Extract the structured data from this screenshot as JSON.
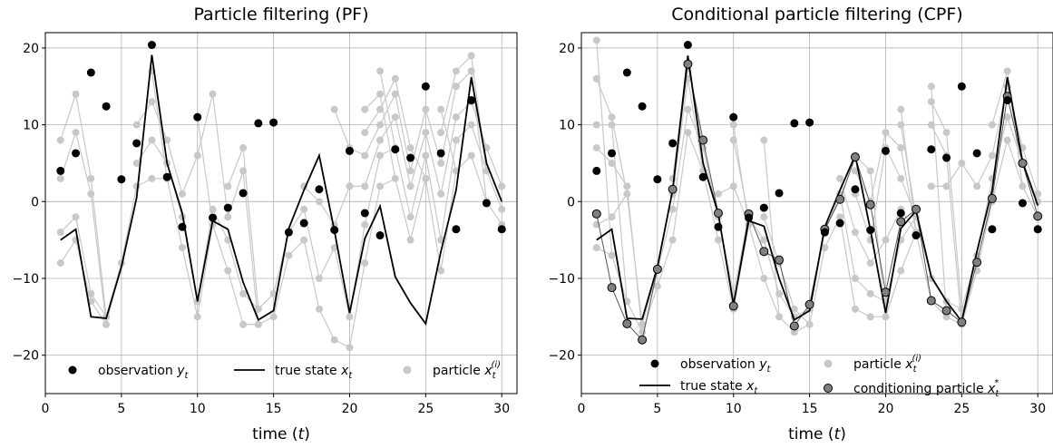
{
  "chart_data": [
    {
      "type": "line",
      "title": "Particle filtering (PF)",
      "xlabel": "time (t)",
      "xlim": [
        0,
        31
      ],
      "ylim": [
        -25,
        22
      ],
      "xticks": [
        0,
        5,
        10,
        15,
        20,
        25,
        30
      ],
      "yticks": [
        -20,
        -10,
        0,
        10,
        20
      ],
      "grid": true,
      "legend_position": "bottom",
      "colors": {
        "observation": "#000000",
        "true_state": "#000000",
        "particle": "#c8c8c8"
      },
      "legend": [
        {
          "kind": "observation",
          "text": "observation y",
          "sub": "t"
        },
        {
          "kind": "true_state",
          "text": "true state x",
          "sub": "t"
        },
        {
          "kind": "particle",
          "text": "particle x",
          "sub": "t",
          "sup": "(i)"
        }
      ],
      "true_state": {
        "x": [
          1,
          2,
          3,
          4,
          5,
          6,
          7,
          8,
          9,
          10,
          11,
          12,
          13,
          14,
          15,
          16,
          17,
          18,
          19,
          20,
          21,
          22,
          23,
          24,
          25,
          26,
          27,
          28,
          29,
          30
        ],
        "y": [
          -5,
          -3.6,
          -15,
          -15.2,
          -8.5,
          0.5,
          19.1,
          5,
          -1.5,
          -13,
          -2.5,
          -3.6,
          -10.5,
          -15.4,
          -14.2,
          -3.5,
          1.5,
          6,
          -3.8,
          -14.5,
          -4.8,
          -0.6,
          -9.8,
          -13.2,
          -15.9,
          -6.5,
          1.5,
          16.2,
          5,
          0
        ]
      },
      "observations": {
        "x": [
          1,
          2,
          3,
          4,
          5,
          6,
          7,
          8,
          9,
          10,
          11,
          12,
          13,
          14,
          15,
          16,
          17,
          18,
          19,
          20,
          21,
          22,
          23,
          24,
          25,
          26,
          27,
          28,
          29,
          30
        ],
        "y": [
          4,
          6.3,
          16.8,
          12.4,
          2.9,
          7.6,
          20.4,
          3.2,
          -3.3,
          11,
          -2.1,
          -0.8,
          1.1,
          10.2,
          10.3,
          -4,
          -2.8,
          1.6,
          -3.7,
          6.6,
          -1.5,
          -4.4,
          6.8,
          5.7,
          15,
          6.3,
          -3.6,
          13.2,
          -0.2,
          -3.6
        ]
      },
      "particles": {
        "x": [
          1,
          2,
          3,
          4,
          5,
          6,
          7,
          8,
          9,
          10,
          11,
          12,
          13,
          14,
          15,
          16,
          17,
          18,
          19,
          20,
          21,
          22,
          23,
          24,
          25,
          26,
          27,
          28,
          29,
          30
        ],
        "clusters": [
          [
            [
              -8,
              -4,
              3,
              8
            ],
            [
              -5,
              -2,
              9,
              14
            ],
            [
              -13,
              -12,
              1,
              3
            ],
            [
              -16,
              -15
            ],
            [
              -8
            ],
            [
              2,
              5,
              10
            ],
            [
              3,
              8,
              13,
              17
            ],
            [
              3,
              5,
              8
            ],
            [
              -6,
              -2,
              1
            ],
            [
              -15,
              -13,
              6,
              11
            ],
            [
              -3,
              -1,
              14
            ],
            [
              -9,
              -5,
              -2,
              2
            ],
            [
              -16,
              -12,
              4,
              7
            ],
            [
              -16,
              -14
            ],
            [
              -15,
              -12
            ],
            [
              -7,
              -4
            ],
            [
              -5,
              -1,
              2
            ],
            [
              -14,
              -10,
              0
            ],
            [
              -18,
              -6,
              -3,
              12
            ],
            [
              -19,
              -15,
              2,
              7
            ],
            [
              -8,
              -3,
              2,
              6,
              9,
              12
            ],
            [
              2,
              6,
              8,
              10,
              12,
              14,
              17
            ],
            [
              3,
              7,
              11,
              14,
              16
            ],
            [
              -5,
              -2,
              2,
              4,
              7
            ],
            [
              3,
              6,
              9,
              12
            ],
            [
              -9,
              -5,
              1,
              5,
              9,
              12
            ],
            [
              4,
              8,
              11,
              15,
              17
            ],
            [
              6,
              10,
              13,
              17,
              19
            ],
            [
              0,
              4,
              7
            ],
            [
              -3,
              -1,
              2
            ]
          ]
        ]
      }
    },
    {
      "type": "line",
      "title": "Conditional particle filtering (CPF)",
      "xlabel": "time (t)",
      "xlim": [
        0,
        31
      ],
      "ylim": [
        -25,
        22
      ],
      "xticks": [
        0,
        5,
        10,
        15,
        20,
        25,
        30
      ],
      "yticks": [
        -20,
        -10,
        0,
        10,
        20
      ],
      "grid": true,
      "legend_position": "bottom",
      "colors": {
        "observation": "#000000",
        "true_state": "#000000",
        "particle": "#c8c8c8",
        "conditioning": "#808080"
      },
      "legend": [
        {
          "kind": "observation",
          "text": "observation y",
          "sub": "t"
        },
        {
          "kind": "particle",
          "text": "particle x",
          "sub": "t",
          "sup": "(i)"
        },
        {
          "kind": "true_state",
          "text": "true state x",
          "sub": "t"
        },
        {
          "kind": "conditioning",
          "text": "conditioning particle x",
          "sub": "t",
          "sup": "*"
        }
      ],
      "true_state": {
        "x": [
          1,
          2,
          3,
          4,
          5,
          6,
          7,
          8,
          9,
          10,
          11,
          12,
          13,
          14,
          15,
          16,
          17,
          18,
          19,
          20,
          21,
          22,
          23,
          24,
          25,
          26,
          27,
          28,
          29,
          30
        ],
        "y": [
          -5,
          -3.6,
          -15.2,
          -15.3,
          -8.5,
          1.5,
          19,
          5,
          -1.6,
          -13.4,
          -2.5,
          -3.2,
          -10,
          -15.4,
          -14.2,
          -3.3,
          1.5,
          6,
          -3.7,
          -14.5,
          -3.5,
          -1.2,
          -9.8,
          -13,
          -15.6,
          -6.5,
          1.5,
          16.2,
          5.2,
          -0.5
        ]
      },
      "observations": {
        "x": [
          1,
          2,
          3,
          4,
          5,
          6,
          7,
          8,
          9,
          10,
          11,
          12,
          13,
          14,
          15,
          16,
          17,
          18,
          19,
          20,
          21,
          22,
          23,
          24,
          25,
          26,
          27,
          28,
          29,
          30
        ],
        "y": [
          4,
          6.3,
          16.8,
          12.4,
          2.9,
          7.6,
          20.4,
          3.2,
          -3.3,
          11,
          -2.1,
          -0.8,
          1.1,
          10.2,
          10.3,
          -4,
          -2.8,
          1.6,
          -3.7,
          6.6,
          -1.5,
          -4.4,
          6.8,
          5.7,
          15,
          6.3,
          -3.6,
          13.2,
          -0.2,
          -3.6
        ]
      },
      "conditioning": {
        "x": [
          1,
          2,
          3,
          4,
          5,
          6,
          7,
          8,
          9,
          10,
          11,
          12,
          13,
          14,
          15,
          16,
          17,
          18,
          19,
          20,
          21,
          22,
          23,
          24,
          25,
          26,
          27,
          28,
          29,
          30
        ],
        "y": [
          -1.6,
          -11.2,
          -15.9,
          -18,
          -8.8,
          1.6,
          17.9,
          8,
          -1.5,
          -13.6,
          -1.6,
          -6.5,
          -7.6,
          -16.2,
          -13.4,
          -3.6,
          0.3,
          5.8,
          -0.4,
          -11.8,
          -2.6,
          -1,
          -12.9,
          -14.2,
          -15.7,
          -7.9,
          0.4,
          13.7,
          5,
          -1.9
        ]
      },
      "particles": {
        "x": [
          1,
          2,
          3,
          4,
          5,
          6,
          7,
          8,
          9,
          10,
          11,
          12,
          13,
          14,
          15,
          16,
          17,
          18,
          19,
          20,
          21,
          22,
          23,
          24,
          25,
          26,
          27,
          28,
          29,
          30
        ],
        "clusters": [
          [
            [
              -6,
              -3,
              7,
              10,
              16,
              21
            ],
            [
              -7,
              -2,
              5,
              10,
              11
            ],
            [
              -13,
              1,
              2
            ],
            [
              -17,
              -16
            ],
            [
              -11,
              -9
            ],
            [
              -5,
              -1,
              1,
              3
            ],
            [
              9,
              12,
              16,
              18
            ],
            [
              4,
              7
            ],
            [
              -5,
              -2,
              1
            ],
            [
              -14,
              -12,
              2,
              8,
              10
            ],
            [
              -3,
              -2
            ],
            [
              -10,
              -5,
              -2,
              8
            ],
            [
              -15,
              -12,
              -8
            ],
            [
              -17,
              -15,
              -14
            ],
            [
              -16,
              -14
            ],
            [
              -6,
              -4
            ],
            [
              -2,
              1,
              3
            ],
            [
              -14,
              -10,
              -4,
              1,
              4,
              6
            ],
            [
              -15,
              -12,
              -8,
              -5,
              0,
              4
            ],
            [
              -15,
              -13,
              -5,
              7,
              9
            ],
            [
              -9,
              -5,
              -1,
              3,
              7,
              10,
              12
            ],
            [
              -4,
              -2
            ],
            [
              -13,
              -10,
              2,
              10,
              13,
              15
            ],
            [
              -15,
              -13,
              2,
              6,
              9
            ],
            [
              -16,
              -14,
              5
            ],
            [
              -9,
              -7,
              2
            ],
            [
              0,
              3,
              6,
              10
            ],
            [
              8,
              11,
              15,
              17
            ],
            [
              2,
              5,
              7
            ],
            [
              -2,
              0,
              1
            ]
          ]
        ]
      }
    }
  ]
}
